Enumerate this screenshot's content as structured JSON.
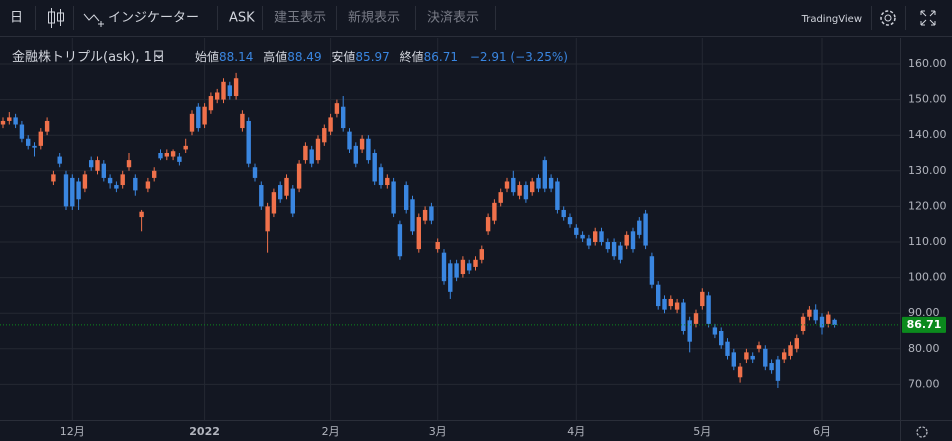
{
  "toolbar": {
    "interval": "日",
    "indicators": "インジケーター",
    "side": "ASK",
    "positions": "建玉表示",
    "new_orders": "新規表示",
    "settlements": "決済表示",
    "brand": "TradingView"
  },
  "chart_data": {
    "type": "candlestick",
    "symbol": "金融株トリプル(ask), 1日",
    "open_label": "始値",
    "high_label": "高値",
    "low_label": "安値",
    "close_label": "終値",
    "change_text": "−2.91 (−3.25%)",
    "up_color": "#f0714b",
    "down_color": "#3a86e0",
    "last_price_color": "#0b8a1d",
    "grid": true,
    "ylim": [
      60,
      167.3
    ],
    "yticks": [
      {
        "value": 70,
        "label": "70.00"
      },
      {
        "value": 80,
        "label": "80.00"
      },
      {
        "value": 90,
        "label": "90.00"
      },
      {
        "value": 100,
        "label": "100.00"
      },
      {
        "value": 110,
        "label": "110.00"
      },
      {
        "value": 120,
        "label": "120.00"
      },
      {
        "value": 130,
        "label": "130.00"
      },
      {
        "value": 140,
        "label": "140.00"
      },
      {
        "value": 150,
        "label": "150.00"
      },
      {
        "value": 160,
        "label": "160.00"
      }
    ],
    "categories": [
      null,
      null,
      null,
      null,
      null,
      null,
      null,
      null,
      null,
      null,
      null,
      "12月",
      null,
      null,
      null,
      null,
      null,
      null,
      null,
      null,
      null,
      null,
      null,
      null,
      null,
      null,
      null,
      null,
      null,
      null,
      null,
      null,
      "2022",
      null,
      null,
      null,
      null,
      null,
      null,
      null,
      null,
      null,
      null,
      null,
      null,
      null,
      null,
      null,
      null,
      null,
      null,
      null,
      "2月",
      null,
      null,
      null,
      null,
      null,
      null,
      null,
      null,
      null,
      null,
      null,
      null,
      null,
      null,
      null,
      null,
      "3月",
      null,
      null,
      null,
      null,
      null,
      null,
      null,
      null,
      null,
      null,
      null,
      null,
      null,
      null,
      null,
      null,
      null,
      null,
      null,
      null,
      null,
      "4月",
      null,
      null,
      null,
      null,
      null,
      null,
      null,
      null,
      null,
      null,
      null,
      null,
      null,
      null,
      null,
      null,
      null,
      null,
      null,
      "5月",
      null,
      null,
      null,
      null,
      null,
      null,
      null,
      null,
      null,
      null,
      null,
      null,
      null,
      null,
      null,
      null,
      null,
      null,
      "6月",
      null,
      null
    ],
    "open": [
      143,
      144,
      145,
      143,
      139,
      137,
      137,
      141,
      127,
      134,
      129,
      128,
      127,
      125,
      133,
      130,
      132,
      128,
      126,
      126,
      131,
      128,
      117,
      125,
      128,
      135,
      134,
      134,
      134,
      136,
      141,
      148,
      143,
      147,
      150,
      150,
      154,
      151,
      142,
      144,
      131,
      126,
      113,
      118,
      126,
      123,
      125,
      125,
      133,
      136,
      133,
      138,
      141,
      146,
      148,
      141,
      137,
      136,
      139,
      135,
      131,
      126,
      127,
      115,
      126,
      122,
      108,
      116,
      120,
      108,
      107,
      104,
      104,
      101,
      104,
      103,
      105,
      113,
      116,
      121,
      125,
      128,
      123,
      126,
      124,
      128,
      133,
      128,
      127,
      119,
      117,
      114,
      112,
      111,
      110,
      113,
      110,
      110,
      109,
      109,
      113,
      116,
      118,
      106,
      98,
      94,
      92,
      91,
      93,
      88,
      87,
      92,
      95,
      86,
      85,
      82,
      79,
      72,
      77,
      78,
      80,
      80,
      76,
      77,
      77,
      78,
      80,
      85,
      89,
      91,
      89,
      87,
      88.14
    ],
    "high": [
      145,
      146.5,
      146,
      144,
      140,
      138,
      142,
      145,
      130,
      135,
      130,
      129,
      128,
      130,
      134,
      134,
      133,
      129,
      127,
      130,
      135,
      129,
      119,
      128,
      131,
      136,
      136,
      136,
      135,
      139,
      147,
      149,
      149,
      152,
      153,
      156,
      155,
      157.5,
      147,
      145,
      132,
      127,
      121,
      125,
      127,
      129,
      126,
      133,
      138,
      137,
      140,
      143,
      146,
      150,
      151,
      142,
      138,
      140,
      140,
      136,
      132,
      129,
      128,
      116,
      127,
      123,
      118,
      120,
      121,
      111,
      108,
      105,
      105,
      106,
      105,
      106,
      109,
      118,
      122,
      125,
      128,
      130,
      127,
      127,
      128,
      129,
      134,
      129,
      128,
      120,
      118,
      115,
      113,
      112,
      114,
      114,
      111,
      111,
      110,
      113,
      114,
      117,
      119,
      107,
      99,
      95,
      95,
      94,
      94,
      89,
      91,
      97,
      96,
      87,
      86,
      83,
      80,
      76,
      80,
      79,
      82,
      81,
      77,
      78,
      80,
      82,
      84,
      90,
      92,
      92.5,
      90,
      90.5,
      88.49
    ],
    "low": [
      142,
      143,
      142,
      138,
      136,
      134,
      136,
      140,
      126,
      131,
      119,
      119,
      119,
      124,
      130,
      129,
      127,
      125,
      124,
      125,
      130,
      123,
      113,
      124,
      127,
      133,
      133,
      133,
      131.5,
      135,
      140,
      141,
      142,
      146,
      149,
      149,
      150,
      150,
      141,
      131,
      127,
      119,
      107,
      117,
      121,
      122,
      117,
      124,
      132,
      131,
      132,
      137,
      140,
      145,
      141,
      135,
      131,
      135,
      132,
      126,
      125,
      125,
      117,
      105,
      118,
      112,
      107,
      115,
      115,
      107,
      98,
      94,
      99,
      100,
      101,
      102,
      104,
      112,
      115,
      120,
      124,
      123,
      122,
      121,
      123,
      124,
      124,
      124,
      118,
      116,
      114,
      111,
      110,
      108,
      109,
      109,
      107,
      105,
      104,
      108,
      107,
      111,
      108,
      97,
      91,
      90,
      91,
      90,
      84,
      79,
      86,
      91,
      86,
      83,
      80,
      77,
      74,
      70.5,
      76,
      76,
      79,
      74,
      73,
      69,
      76,
      77,
      79,
      84,
      88,
      87,
      84,
      86,
      85.97
    ],
    "close": [
      144,
      145,
      143,
      139,
      137,
      136.5,
      141,
      144,
      129,
      132,
      120,
      120,
      122,
      129,
      131,
      133,
      128,
      126.5,
      125,
      129,
      133,
      124.5,
      118.5,
      127,
      130,
      133.5,
      135,
      135.5,
      132.5,
      137,
      146,
      142,
      148,
      151,
      152,
      155,
      151,
      156,
      146,
      132,
      128,
      120,
      120,
      124,
      122,
      128,
      118,
      132,
      137,
      132,
      139,
      142,
      145,
      149,
      142,
      136,
      132,
      139,
      133,
      127,
      126,
      128,
      118,
      106,
      119,
      113,
      117,
      119,
      116,
      110,
      99,
      96,
      100,
      105,
      102,
      105,
      108,
      117,
      121,
      124,
      127,
      124,
      126,
      122,
      127,
      125,
      125,
      125,
      119,
      117,
      115,
      112,
      111,
      109,
      113,
      110,
      108,
      106,
      105,
      112,
      108,
      112,
      109,
      98,
      92,
      91,
      94,
      93,
      85,
      82,
      90,
      96,
      87,
      84,
      81,
      78,
      75,
      75,
      79,
      77,
      81,
      75,
      74,
      71,
      79,
      81,
      83,
      89,
      91,
      88,
      86,
      89.62,
      86.71
    ]
  }
}
